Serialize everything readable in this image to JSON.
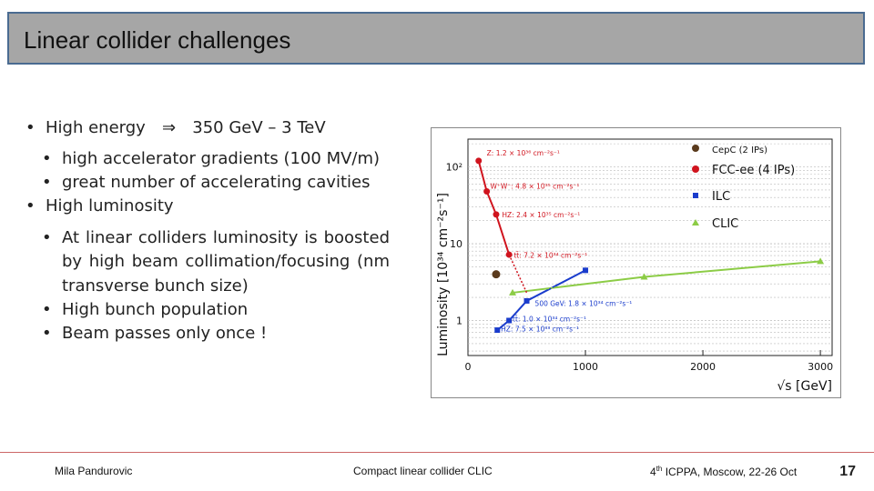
{
  "slide": {
    "title": "Linear collider challenges",
    "bullets": {
      "b1_label": "High energy",
      "b1_arrow": "⇒",
      "b1_value": "350 GeV – 3 TeV",
      "b1_sub1": "high accelerator gradients (100 MV/m)",
      "b1_sub2": "great number of accelerating cavities",
      "b2_label": "High luminosity",
      "b2_sub1": "At linear colliders luminosity is boosted by high beam collimation/focusing (nm transverse bunch size)",
      "b2_sub2": "High bunch population",
      "b2_sub3": "Beam passes only once !"
    },
    "footer": {
      "author": "Mila Pandurovic",
      "topic": "Compact linear collider CLIC",
      "conf_sup": "th",
      "conf_num": "4",
      "conf_rest": " ICPPA, Moscow, 22-26 Oct",
      "page": "17"
    }
  },
  "chart_data": {
    "type": "line",
    "ylabel": "Luminosity [10³⁴ cm⁻²s⁻¹]",
    "xlabel": "√s [GeV]",
    "xlim": [
      0,
      3100
    ],
    "ylim": [
      0.35,
      230
    ],
    "ylog": true,
    "x_ticks": [
      "0",
      "1000",
      "2000",
      "3000"
    ],
    "y_ticks": [
      "1",
      "10",
      "10²"
    ],
    "legend": [
      "CepC (2 IPs)",
      "FCC-ee (4 IPs)",
      "ILC",
      "CLIC"
    ],
    "legend_position": "top-right",
    "colors": {
      "cepc": "#5a3a1c",
      "fcc": "#d0141e",
      "ilc": "#1a3ccc",
      "clic": "#8ccc46"
    },
    "series": [
      {
        "name": "FCC-ee (4 IPs)",
        "points": [
          [
            91,
            120
          ],
          [
            160,
            48
          ],
          [
            240,
            24
          ],
          [
            350,
            7.2
          ]
        ]
      },
      {
        "name": "ILC",
        "points": [
          [
            250,
            0.75
          ],
          [
            350,
            1.0
          ],
          [
            500,
            1.8
          ],
          [
            1000,
            4.5
          ]
        ]
      },
      {
        "name": "CLIC",
        "points": [
          [
            380,
            2.3
          ],
          [
            1500,
            3.7
          ],
          [
            3000,
            5.9
          ]
        ]
      },
      {
        "name": "CepC (2 IPs)",
        "points": [
          [
            240,
            4.0
          ]
        ]
      }
    ],
    "annotations": [
      "Z: 1.2 × 10³⁶ cm⁻²s⁻¹",
      "W⁺W⁻: 4.8 × 10³⁵ cm⁻²s⁻¹",
      "HZ: 2.4 × 10³⁵ cm⁻²s⁻¹",
      "tt̄: 7.2 × 10³⁴ cm⁻²s⁻¹",
      "500 GeV: 1.8 × 10³⁴ cm⁻²s⁻¹",
      "tt̄: 1.0 × 10³⁴ cm⁻²s⁻¹",
      "HZ: 7.5 × 10³³ cm⁻²s⁻¹"
    ]
  }
}
